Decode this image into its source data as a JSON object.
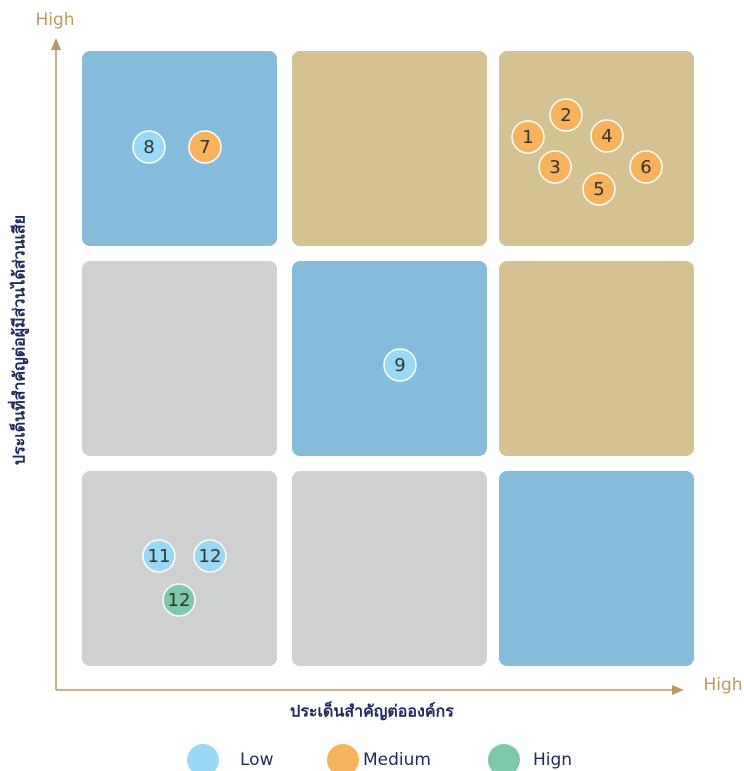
{
  "axes": {
    "y_high": "High",
    "x_high": "High",
    "y_label": "ประเด็นที่สำคัญต่อผู้มีส่วนได้ส่วนเสีย",
    "x_label": "ประเด็นสำคัญต่อองค์กร"
  },
  "legend": [
    {
      "name": "Low",
      "color": "#9bd8f5"
    },
    {
      "name": "Medium",
      "color": "#f6b35c"
    },
    {
      "name": "Hign",
      "color": "#7dc9a9"
    }
  ],
  "points": [
    {
      "label": "8",
      "group": "Low"
    },
    {
      "label": "7",
      "group": "Medium"
    },
    {
      "label": "1",
      "group": "Medium"
    },
    {
      "label": "2",
      "group": "Medium"
    },
    {
      "label": "4",
      "group": "Medium"
    },
    {
      "label": "3",
      "group": "Medium"
    },
    {
      "label": "6",
      "group": "Medium"
    },
    {
      "label": "5",
      "group": "Medium"
    },
    {
      "label": "9",
      "group": "Low"
    },
    {
      "label": "11",
      "group": "Low"
    },
    {
      "label": "12",
      "group": "Low"
    },
    {
      "label": "12",
      "group": "Hign"
    }
  ]
}
